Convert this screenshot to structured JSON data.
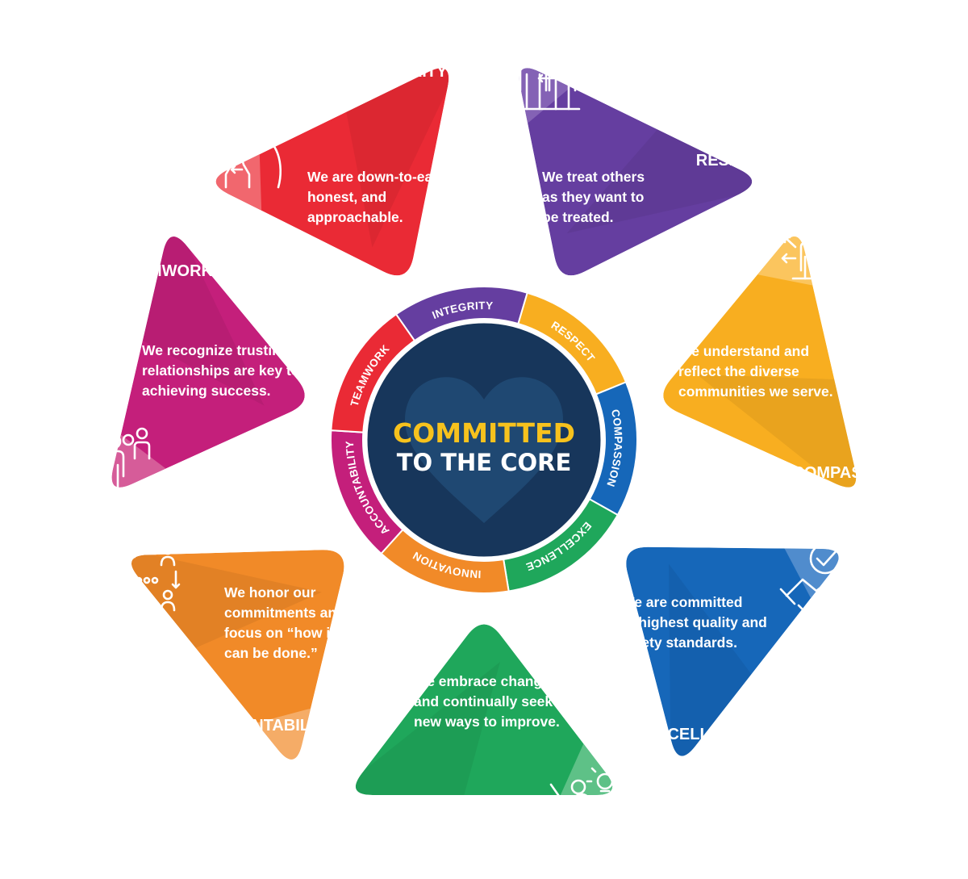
{
  "center": {
    "line1": "COMMITTED",
    "line2": "TO THE CORE",
    "line1_color": "#f7c21d",
    "line2_color": "#ffffff",
    "disc_color": "#17365b"
  },
  "values": [
    {
      "key": "integrity",
      "name": "INTEGRITY",
      "ring_label": "INTEGRITY",
      "lines": [
        "We are down-to-earth,",
        "honest, and",
        "approachable."
      ],
      "color": "#653ea0",
      "light": "#8a68b8",
      "icon": "faces-exchange-icon"
    },
    {
      "key": "respect",
      "name": "RESPECT",
      "ring_label": "RESPECT",
      "lines": [
        "We treat others",
        "as they want to",
        "be treated."
      ],
      "color": "#f8ae20",
      "light": "#fbc96a",
      "icon": "people-exchange-icon"
    },
    {
      "key": "compassion",
      "name": "COMPASSION",
      "ring_label": "COMPASSION",
      "lines": [
        "We understand and",
        "reflect the diverse",
        "communities we serve."
      ],
      "color": "#1667b9",
      "light": "#5a93d0",
      "icon": "person-arrows-icon"
    },
    {
      "key": "excellence",
      "name": "EXCELLENCE",
      "ring_label": "EXCELLENCE",
      "lines": [
        "We are committed",
        "to highest quality and",
        "safety standards."
      ],
      "color": "#1fa75b",
      "light": "#6ac68f",
      "icon": "handshake-check-icon"
    },
    {
      "key": "innovation",
      "name": "INNOVATION",
      "ring_label": "INNOVATION",
      "lines": [
        "We embrace change",
        "and continually seek",
        "new ways to improve."
      ],
      "color": "#f18a28",
      "light": "#f6b272",
      "icon": "person-lightbulb-icon"
    },
    {
      "key": "accountability",
      "name": "ACCOUNTABILITY",
      "ring_label": "ACCOUNTABILITY",
      "lines": [
        "We honor our",
        "commitments and",
        "focus on “how it",
        "can be done.”"
      ],
      "color": "#c41f7b",
      "light": "#d9679f",
      "icon": "team-cycle-icon"
    },
    {
      "key": "teamwork",
      "name": "TEAMWORK",
      "ring_label": "TEAMWORK",
      "lines": [
        "We recognize trusting",
        "relationships are key to",
        "achieving success."
      ],
      "color": "#ea2a35",
      "light": "#f27278",
      "icon": "group-people-icon"
    }
  ]
}
